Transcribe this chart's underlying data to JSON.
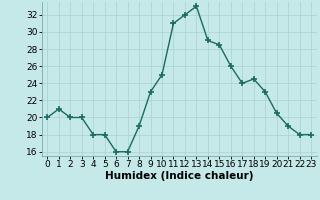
{
  "x": [
    0,
    1,
    2,
    3,
    4,
    5,
    6,
    7,
    8,
    9,
    10,
    11,
    12,
    13,
    14,
    15,
    16,
    17,
    18,
    19,
    20,
    21,
    22,
    23
  ],
  "y": [
    20,
    21,
    20,
    20,
    18,
    18,
    16,
    16,
    19,
    23,
    25,
    31,
    32,
    33,
    29,
    28.5,
    26,
    24,
    24.5,
    23,
    20.5,
    19,
    18,
    18
  ],
  "line_color": "#1a6b60",
  "marker": "+",
  "marker_size": 4,
  "bg_color": "#c5e8e8",
  "grid_color": "#b0d4d4",
  "xlabel": "Humidex (Indice chaleur)",
  "xlabel_fontsize": 7.5,
  "ylim": [
    15.5,
    33.5
  ],
  "yticks": [
    16,
    18,
    20,
    22,
    24,
    26,
    28,
    30,
    32
  ],
  "xticks": [
    0,
    1,
    2,
    3,
    4,
    5,
    6,
    7,
    8,
    9,
    10,
    11,
    12,
    13,
    14,
    15,
    16,
    17,
    18,
    19,
    20,
    21,
    22,
    23
  ],
  "tick_fontsize": 6.5,
  "title": ""
}
